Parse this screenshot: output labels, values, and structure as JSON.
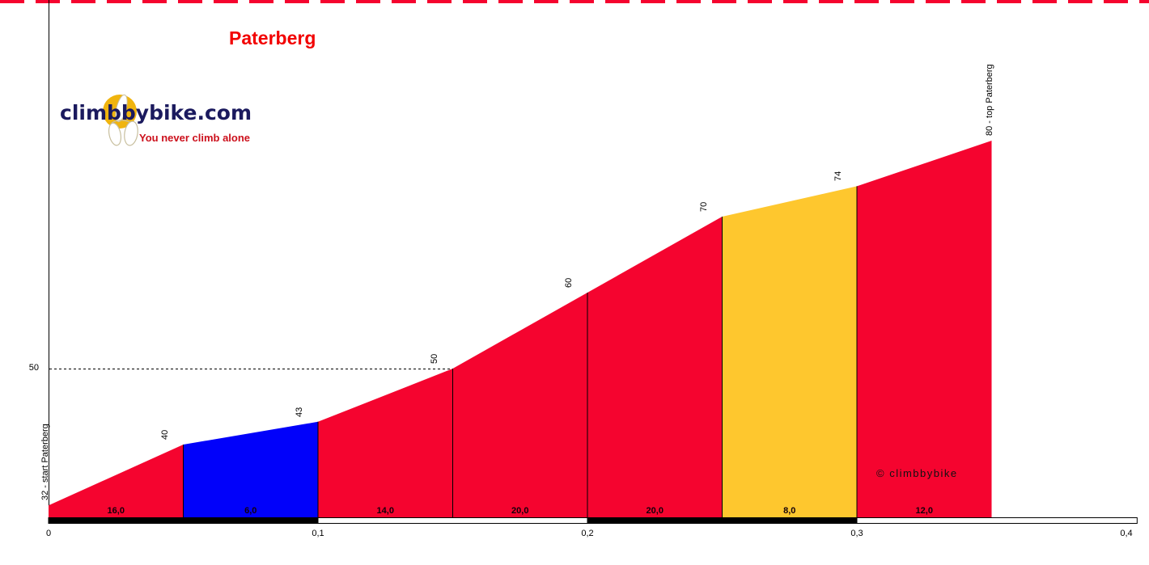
{
  "title": "Paterberg",
  "branding": {
    "logo_text": "climbbybike.com",
    "tagline": "You never climb alone",
    "watermark": "© climbbybike"
  },
  "chart_data": {
    "type": "area",
    "title": "Paterberg",
    "x_unit": "km",
    "xlim": [
      0,
      0.4
    ],
    "x_ticks": [
      "0",
      "0,1",
      "0,2",
      "0,3",
      "0,4"
    ],
    "x_tick_values": [
      0,
      0.1,
      0.2,
      0.3,
      0.4
    ],
    "y_gridline": {
      "value": 50,
      "label": "50",
      "style": "dashed"
    },
    "points": [
      {
        "km": 0.0,
        "elevation": 32,
        "label": "32 - start Paterberg"
      },
      {
        "km": 0.05,
        "elevation": 40,
        "label": "40"
      },
      {
        "km": 0.1,
        "elevation": 43,
        "label": "43"
      },
      {
        "km": 0.15,
        "elevation": 50,
        "label": "50"
      },
      {
        "km": 0.2,
        "elevation": 60,
        "label": "60"
      },
      {
        "km": 0.25,
        "elevation": 70,
        "label": "70"
      },
      {
        "km": 0.3,
        "elevation": 74,
        "label": "74"
      },
      {
        "km": 0.35,
        "elevation": 80,
        "label": "80 - top Paterberg"
      }
    ],
    "segments": [
      {
        "from_km": 0.0,
        "to_km": 0.05,
        "gradient_label": "16,0",
        "color": "#f5042f"
      },
      {
        "from_km": 0.05,
        "to_km": 0.1,
        "gradient_label": "6,0",
        "color": "#0101fa"
      },
      {
        "from_km": 0.1,
        "to_km": 0.15,
        "gradient_label": "14,0",
        "color": "#f5042f"
      },
      {
        "from_km": 0.15,
        "to_km": 0.2,
        "gradient_label": "20,0",
        "color": "#f5042f"
      },
      {
        "from_km": 0.2,
        "to_km": 0.25,
        "gradient_label": "20,0",
        "color": "#f5042f"
      },
      {
        "from_km": 0.25,
        "to_km": 0.3,
        "gradient_label": "8,0",
        "color": "#fec72e"
      },
      {
        "from_km": 0.3,
        "to_km": 0.35,
        "gradient_label": "12,0",
        "color": "#f5042f"
      }
    ],
    "distance_bar_cells": [
      {
        "from_km": 0.0,
        "to_km": 0.1,
        "style": "filled"
      },
      {
        "from_km": 0.1,
        "to_km": 0.2,
        "style": "outline"
      },
      {
        "from_km": 0.2,
        "to_km": 0.3,
        "style": "filled"
      },
      {
        "from_km": 0.3,
        "to_km": 0.404,
        "style": "outline"
      }
    ],
    "colors": {
      "steep_red": "#f5042f",
      "easy_blue": "#0101fa",
      "medium_yellow": "#fec72e",
      "axis_black": "#000000",
      "top_dash_red": "#f5042f"
    }
  }
}
